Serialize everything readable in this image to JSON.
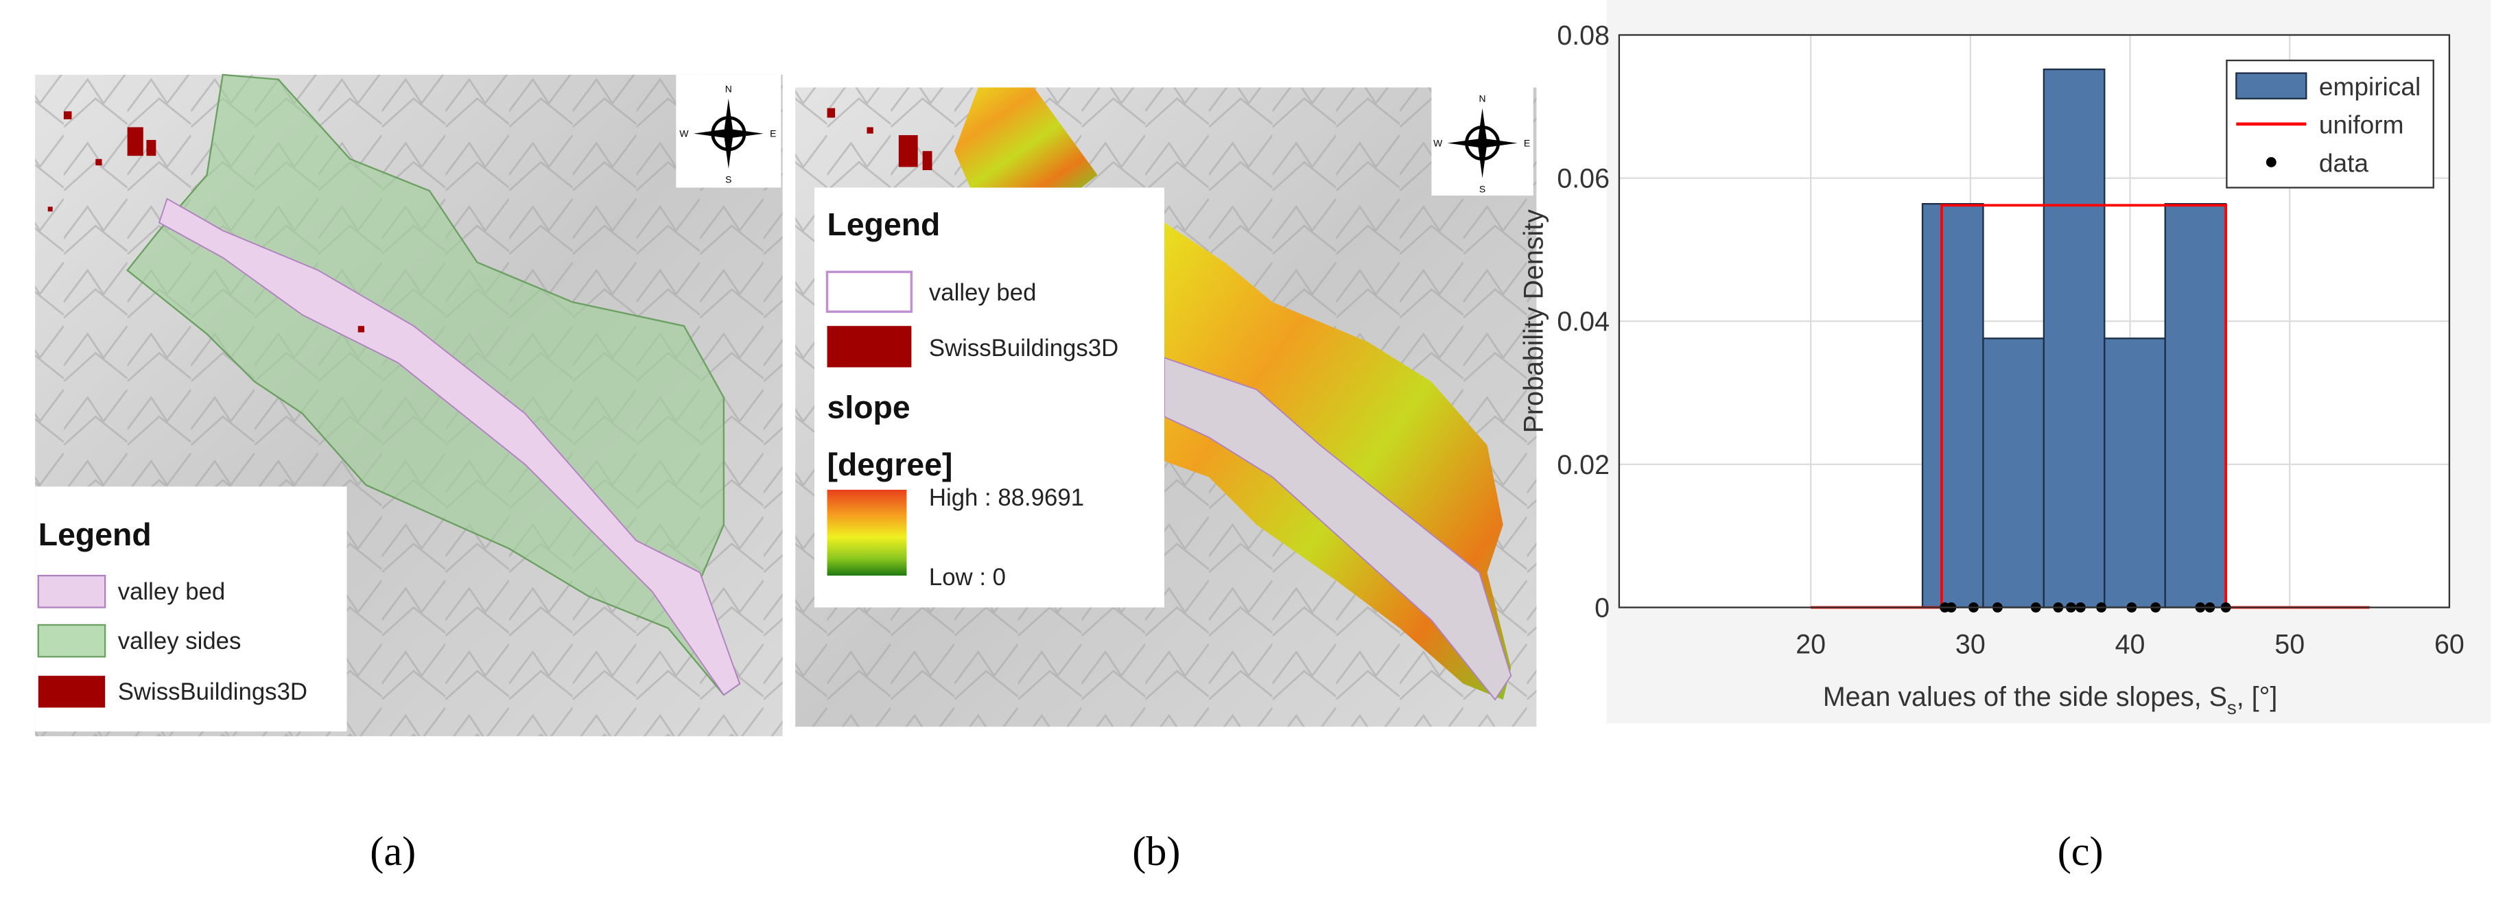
{
  "chart_data": {
    "type": "histogram",
    "ylabel": "Probability Density",
    "xlabel": {
      "text": "Mean values of the side slopes, S",
      "sub": "s",
      "tail": ",  [°]"
    },
    "bins": [
      27.0,
      30.8,
      34.6,
      38.4,
      42.2,
      46.0
    ],
    "xlim": [
      8,
      60
    ],
    "ylim": [
      0,
      0.08
    ],
    "xticks": [
      20,
      30,
      40,
      50,
      60
    ],
    "yticks": [
      0,
      0.02,
      0.04,
      0.06,
      0.08
    ],
    "grid": true,
    "legend": "upper right",
    "series": [
      {
        "name": "empirical",
        "type": "histogram",
        "color": "#4f78a8",
        "values": [
          0.0564,
          0.0376,
          0.0752,
          0.0376,
          0.0564
        ]
      },
      {
        "name": "uniform",
        "type": "line",
        "color": "#ff0000",
        "x": [
          20,
          28.2,
          28.2,
          46.0,
          46.0,
          55
        ],
        "values": [
          0,
          0,
          0.0562,
          0.0562,
          0,
          0
        ]
      },
      {
        "name": "data",
        "type": "scatter",
        "color": "#000000",
        "x": [
          28.4,
          28.8,
          30.2,
          31.7,
          34.1,
          35.5,
          36.3,
          36.9,
          38.2,
          40.1,
          41.6,
          44.4,
          45.0,
          46.0
        ],
        "values": [
          0,
          0,
          0,
          0,
          0,
          0,
          0,
          0,
          0,
          0,
          0,
          0,
          0,
          0
        ]
      }
    ]
  },
  "map_a": {
    "legend_title": "Legend",
    "items": [
      "valley bed",
      "valley sides",
      "SwissBuildings3D"
    ],
    "compass": [
      "N",
      "S",
      "E",
      "W"
    ]
  },
  "map_b": {
    "legend_title": "Legend",
    "items": [
      "valley bed",
      "SwissBuildings3D"
    ],
    "slope_title": "slope",
    "slope_unit": "[degree]",
    "high": "High : 88.9691",
    "low": "Low : 0",
    "compass": [
      "N",
      "S",
      "E",
      "W"
    ]
  },
  "captions": [
    "(a)",
    "(b)",
    "(c)"
  ]
}
